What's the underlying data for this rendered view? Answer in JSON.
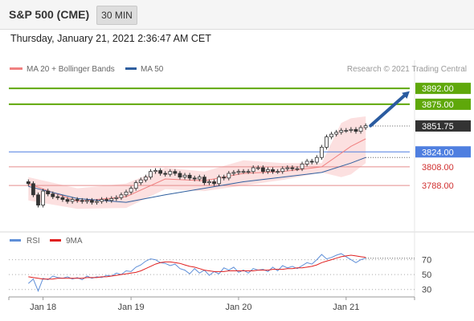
{
  "header": {
    "title": "S&P 500 (CME)",
    "timeframe": "30 MIN",
    "timestamp": "Thursday, January 21, 2021 2:36:47 AM CET"
  },
  "colors": {
    "resistance": "#5fa80a",
    "support_line": "#4f7fe0",
    "support_red": "#e58c8c",
    "price_tag": "#333333",
    "arrow": "#2a5ba0",
    "ma20": "#f08080",
    "ma50": "#2f5f9f",
    "bollinger": "#fbdada",
    "rsi": "#5f8fd8",
    "rsi_ma": "#e02020"
  },
  "chart_data": [
    {
      "type": "line",
      "title": "S&P 500 (CME)",
      "legend": [
        {
          "name": "MA 20 + Bollinger Bands",
          "color": "#f08080"
        },
        {
          "name": "MA 50",
          "color": "#2f5f9f"
        }
      ],
      "legend_position": "top-left",
      "credit": "Research © 2021 Trading Central",
      "ylim": [
        3740,
        3905
      ],
      "x_ticks": [
        {
          "label": "Jan 18",
          "x": 3
        },
        {
          "label": "Jan 19",
          "x": 21
        },
        {
          "label": "Jan 20",
          "x": 43
        },
        {
          "label": "Jan 21",
          "x": 65
        }
      ],
      "xlim": [
        -4,
        79
      ],
      "levels": [
        {
          "value": 3892.0,
          "label": "3892.00",
          "kind": "resistance"
        },
        {
          "value": 3875.0,
          "label": "3875.00",
          "kind": "resistance"
        },
        {
          "value": 3851.75,
          "label": "3851.75",
          "kind": "last"
        },
        {
          "value": 3824.0,
          "label": "3824.00",
          "kind": "support"
        },
        {
          "value": 3808.0,
          "label": "3808.00",
          "kind": "support-red"
        },
        {
          "value": 3788.0,
          "label": "3788.00",
          "kind": "support-red"
        }
      ],
      "series": [
        {
          "name": "MA 20 + Bollinger Bands",
          "x": [
            0,
            10,
            20,
            28,
            36,
            44,
            52,
            60,
            66,
            69
          ],
          "values": [
            3790,
            3771,
            3776,
            3795,
            3793,
            3801,
            3803,
            3808,
            3830,
            3838
          ]
        },
        {
          "name": "MA 50",
          "x": [
            0,
            10,
            20,
            28,
            36,
            44,
            52,
            60,
            66,
            69
          ],
          "values": [
            3787,
            3774,
            3770,
            3778,
            3785,
            3792,
            3797,
            3802,
            3812,
            3818
          ]
        }
      ],
      "bollinger": {
        "x": [
          0,
          10,
          20,
          28,
          36,
          44,
          52,
          60,
          64,
          66,
          69
        ],
        "upper": [
          3797,
          3785,
          3790,
          3807,
          3803,
          3815,
          3812,
          3812,
          3855,
          3860,
          3862
        ],
        "lower": [
          3772,
          3763,
          3764,
          3784,
          3782,
          3788,
          3794,
          3802,
          3797,
          3800,
          3812
        ]
      },
      "candles_close": [
        3790,
        3778,
        3767,
        3782,
        3779,
        3776,
        3775,
        3773,
        3771,
        3773,
        3772,
        3771,
        3772,
        3770,
        3771,
        3773,
        3772,
        3774,
        3775,
        3778,
        3781,
        3785,
        3791,
        3794,
        3797,
        3803,
        3804,
        3801,
        3800,
        3803,
        3801,
        3797,
        3799,
        3796,
        3795,
        3797,
        3791,
        3792,
        3790,
        3797,
        3796,
        3801,
        3802,
        3803,
        3803,
        3803,
        3807,
        3807,
        3803,
        3805,
        3803,
        3803,
        3806,
        3807,
        3806,
        3806,
        3811,
        3814,
        3813,
        3818,
        3829,
        3840,
        3843,
        3845,
        3847,
        3847,
        3848,
        3846,
        3850,
        3852
      ],
      "arrow": {
        "from": [
          70,
          3852
        ],
        "to": [
          78,
          3889
        ]
      }
    },
    {
      "type": "line",
      "legend": [
        {
          "name": "RSI",
          "color": "#5f8fd8"
        },
        {
          "name": "9MA",
          "color": "#e02020"
        }
      ],
      "ylim": [
        20,
        90
      ],
      "y_ticks": [
        70,
        50,
        30
      ],
      "series": [
        {
          "name": "RSI",
          "values": [
            38,
            44,
            28,
            45,
            43,
            48,
            46,
            45,
            47,
            44,
            46,
            43,
            48,
            45,
            47,
            46,
            49,
            48,
            52,
            50,
            55,
            54,
            60,
            63,
            68,
            71,
            70,
            66,
            65,
            62,
            64,
            58,
            56,
            51,
            58,
            52,
            56,
            49,
            54,
            51,
            59,
            56,
            60,
            53,
            56,
            52,
            58,
            56,
            57,
            54,
            60,
            55,
            62,
            59,
            61,
            58,
            62,
            66,
            64,
            70,
            77,
            71,
            73,
            76,
            78,
            74,
            70,
            66,
            70,
            72
          ]
        },
        {
          "name": "9MA",
          "values": [
            47,
            46,
            45,
            44,
            44,
            44,
            45,
            45,
            45,
            45,
            45,
            45,
            46,
            46,
            46,
            47,
            47,
            48,
            49,
            50,
            51,
            52,
            53,
            55,
            58,
            61,
            64,
            66,
            67,
            67,
            66,
            65,
            63,
            61,
            60,
            58,
            56,
            55,
            54,
            54,
            54,
            55,
            55,
            55,
            55,
            55,
            55,
            56,
            56,
            56,
            57,
            57,
            57,
            58,
            58,
            59,
            59,
            60,
            61,
            63,
            66,
            68,
            70,
            72,
            74,
            75,
            76,
            75,
            74,
            73
          ]
        }
      ]
    }
  ]
}
